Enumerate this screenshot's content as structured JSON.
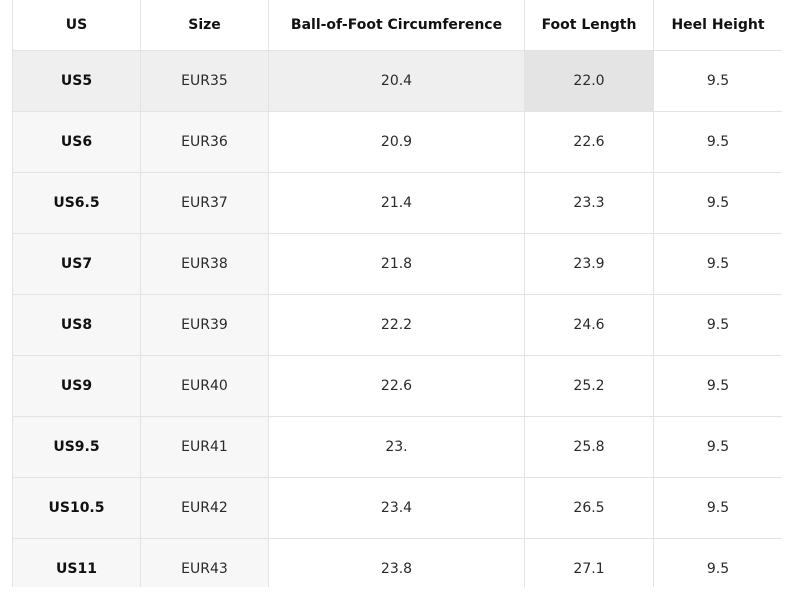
{
  "table": {
    "headers": [
      "US",
      "Size",
      "Ball-of-Foot Circumference",
      "Foot Length",
      "Heel Height"
    ],
    "rows": [
      [
        "US5",
        "EUR35",
        "20.4",
        "22.0",
        "9.5"
      ],
      [
        "US6",
        "EUR36",
        "20.9",
        "22.6",
        "9.5"
      ],
      [
        "US6.5",
        "EUR37",
        "21.4",
        "23.3",
        "9.5"
      ],
      [
        "US7",
        "EUR38",
        "21.8",
        "23.9",
        "9.5"
      ],
      [
        "US8",
        "EUR39",
        "22.2",
        "24.6",
        "9.5"
      ],
      [
        "US9",
        "EUR40",
        "22.6",
        "25.2",
        "9.5"
      ],
      [
        "US9.5",
        "EUR41",
        "23.",
        "25.8",
        "9.5"
      ],
      [
        "US10.5",
        "EUR42",
        "23.4",
        "26.5",
        "9.5"
      ],
      [
        "US11",
        "EUR43",
        "23.8",
        "27.1",
        "9.5"
      ]
    ],
    "highlighted_row": 0,
    "highlighted_col": 3
  }
}
